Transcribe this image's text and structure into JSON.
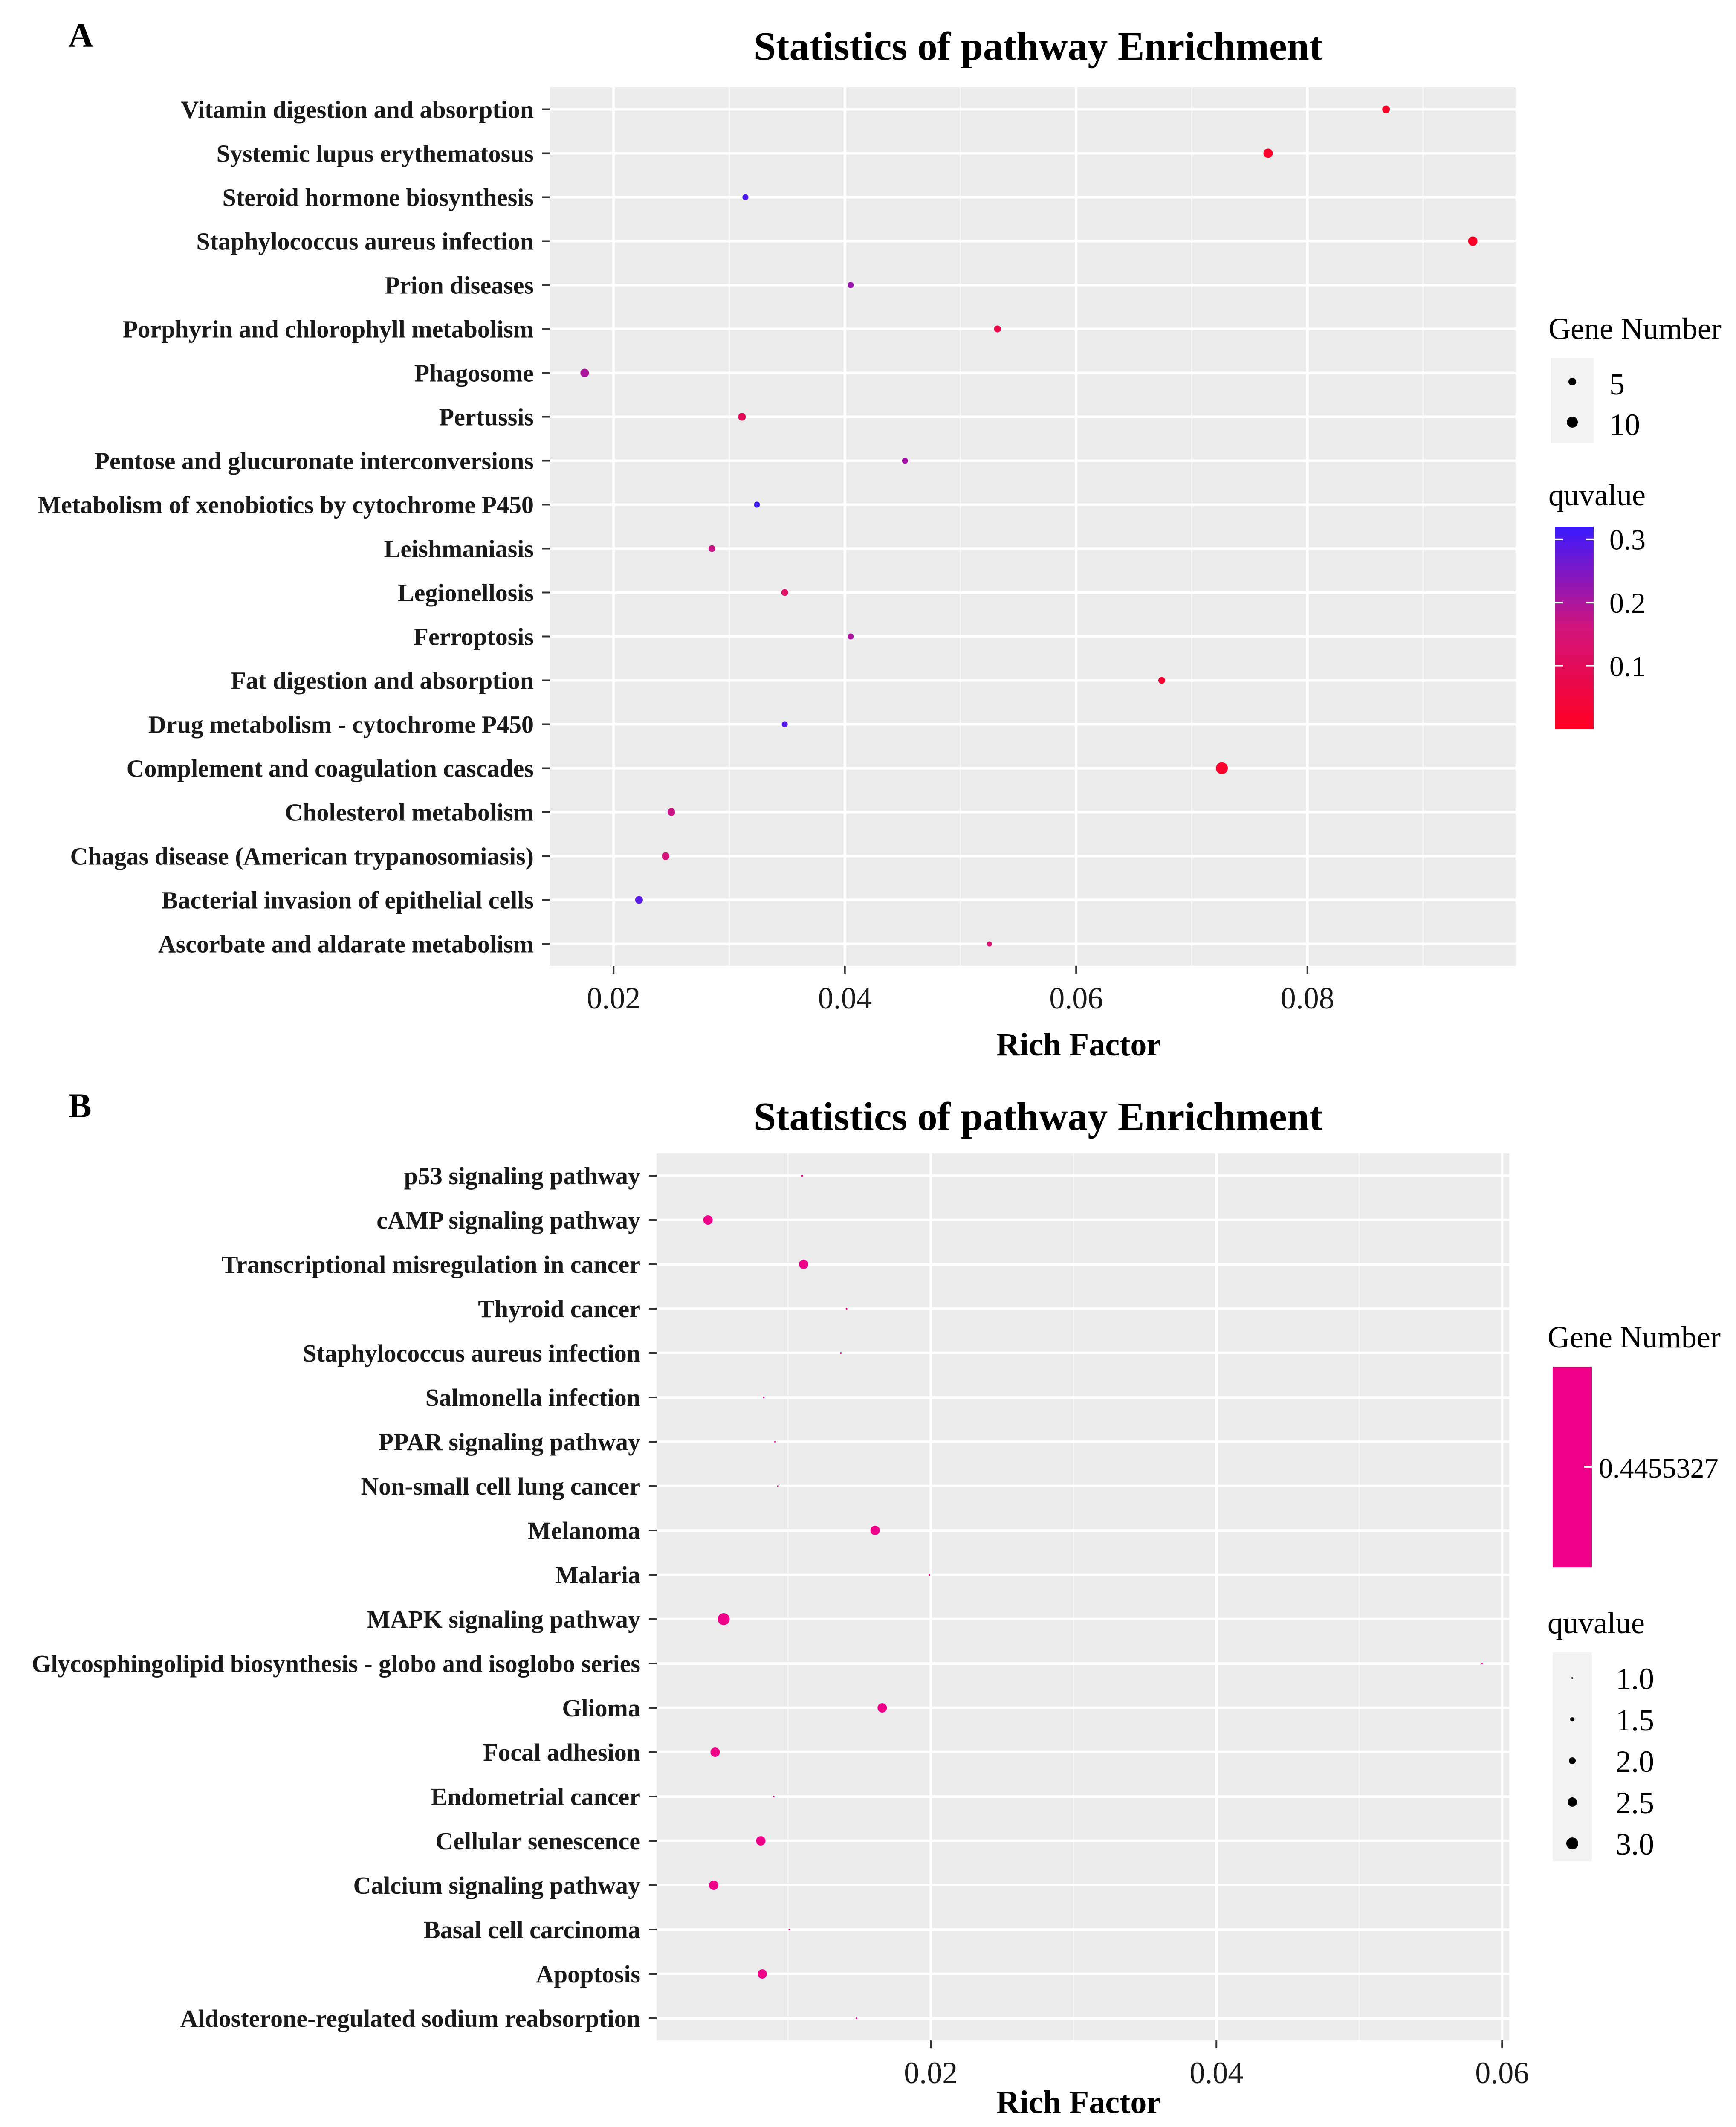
{
  "panels": [
    {
      "letter": "A"
    },
    {
      "letter": "B"
    }
  ],
  "chart_data": [
    {
      "type": "scatter",
      "panel": "A",
      "title": "Statistics of pathway Enrichment",
      "xlabel": "Rich Factor",
      "ylabel": "",
      "xlim": [
        0.0145,
        0.098
      ],
      "xticks": [
        0.02,
        0.04,
        0.06,
        0.08
      ],
      "xtick_labels": [
        "0.02",
        "0.04",
        "0.06",
        "0.08"
      ],
      "grid": true,
      "size_legend": {
        "title": "Gene Number",
        "values": [
          5,
          10
        ],
        "labels": [
          "5",
          "10"
        ]
      },
      "color_legend": {
        "title": "quvalue",
        "range": [
          0.0,
          0.32
        ],
        "ticks": [
          0.3,
          0.2,
          0.1
        ],
        "labels": [
          "0.3",
          "0.2",
          "0.1"
        ],
        "low_color": "#ff0022",
        "high_color": "#3a1aff"
      },
      "points": [
        {
          "label": "Vitamin digestion and absorption",
          "x": 0.0868,
          "q": 0.01,
          "size": 5
        },
        {
          "label": "Systemic lupus erythematosus",
          "x": 0.0766,
          "q": 0.02,
          "size": 7
        },
        {
          "label": "Steroid hormone biosynthesis",
          "x": 0.0314,
          "q": 0.3,
          "size": 3
        },
        {
          "label": "Staphylococcus aureus infection",
          "x": 0.0943,
          "q": 0.01,
          "size": 7
        },
        {
          "label": "Prion diseases",
          "x": 0.0405,
          "q": 0.22,
          "size": 3
        },
        {
          "label": "Porphyrin and chlorophyll metabolism",
          "x": 0.0532,
          "q": 0.07,
          "size": 4
        },
        {
          "label": "Phagosome",
          "x": 0.0175,
          "q": 0.2,
          "size": 6
        },
        {
          "label": "Pertussis",
          "x": 0.0311,
          "q": 0.1,
          "size": 5
        },
        {
          "label": "Pentose and glucuronate interconversions",
          "x": 0.0452,
          "q": 0.21,
          "size": 3
        },
        {
          "label": "Metabolism of xenobiotics by cytochrome P450",
          "x": 0.0324,
          "q": 0.31,
          "size": 3
        },
        {
          "label": "Leishmaniasis",
          "x": 0.0285,
          "q": 0.17,
          "size": 4
        },
        {
          "label": "Legionellosis",
          "x": 0.0348,
          "q": 0.12,
          "size": 4
        },
        {
          "label": "Ferroptosis",
          "x": 0.0405,
          "q": 0.2,
          "size": 3
        },
        {
          "label": "Fat digestion and absorption",
          "x": 0.0674,
          "q": 0.03,
          "size": 4
        },
        {
          "label": "Drug metabolism - cytochrome P450",
          "x": 0.0348,
          "q": 0.29,
          "size": 3
        },
        {
          "label": "Complement and coagulation cascades",
          "x": 0.0726,
          "q": 0.02,
          "size": 10
        },
        {
          "label": "Cholesterol metabolism",
          "x": 0.025,
          "q": 0.17,
          "size": 5
        },
        {
          "label": "Chagas disease (American trypanosomiasis)",
          "x": 0.0245,
          "q": 0.16,
          "size": 5
        },
        {
          "label": "Bacterial invasion of epithelial cells",
          "x": 0.0222,
          "q": 0.29,
          "size": 5
        },
        {
          "label": "Ascorbate and aldarate metabolism",
          "x": 0.0525,
          "q": 0.14,
          "size": 2
        }
      ]
    },
    {
      "type": "scatter",
      "panel": "B",
      "title": "Statistics of pathway Enrichment",
      "xlabel": "Rich Factor",
      "ylabel": "",
      "xlim": [
        0.0008,
        0.0605
      ],
      "xticks": [
        0.02,
        0.04,
        0.06
      ],
      "xtick_labels": [
        "0.02",
        "0.04",
        "0.06"
      ],
      "grid": true,
      "gene_number_legend": {
        "title": "Gene Number",
        "value": 0.4455327,
        "label": "0.4455327",
        "color": "#ee0088"
      },
      "size_legend": {
        "title": "quvalue",
        "values": [
          1.0,
          1.5,
          2.0,
          2.5,
          3.0
        ],
        "labels": [
          "1.0",
          "1.5",
          "2.0",
          "2.5",
          "3.0"
        ]
      },
      "points": [
        {
          "label": "p53 signaling pathway",
          "x": 0.011,
          "size": 1.0
        },
        {
          "label": "cAMP signaling pathway",
          "x": 0.0044,
          "size": 2.5
        },
        {
          "label": "Transcriptional misregulation in cancer",
          "x": 0.0111,
          "size": 2.5
        },
        {
          "label": "Thyroid cancer",
          "x": 0.0141,
          "size": 1.0
        },
        {
          "label": "Staphylococcus aureus infection",
          "x": 0.0137,
          "size": 1.0
        },
        {
          "label": "Salmonella infection",
          "x": 0.0083,
          "size": 1.0
        },
        {
          "label": "PPAR signaling pathway",
          "x": 0.0091,
          "size": 1.0
        },
        {
          "label": "Non-small cell lung cancer",
          "x": 0.0093,
          "size": 1.0
        },
        {
          "label": "Melanoma",
          "x": 0.0161,
          "size": 2.5
        },
        {
          "label": "Malaria",
          "x": 0.0199,
          "size": 1.0
        },
        {
          "label": "MAPK signaling pathway",
          "x": 0.0055,
          "size": 3.0
        },
        {
          "label": "Glycosphingolipid biosynthesis - globo and isoglobo series",
          "x": 0.0586,
          "size": 1.0
        },
        {
          "label": "Glioma",
          "x": 0.0166,
          "size": 2.5
        },
        {
          "label": "Focal adhesion",
          "x": 0.0049,
          "size": 2.5
        },
        {
          "label": "Endometrial cancer",
          "x": 0.009,
          "size": 1.0
        },
        {
          "label": "Cellular senescence",
          "x": 0.0081,
          "size": 2.5
        },
        {
          "label": "Calcium signaling pathway",
          "x": 0.0048,
          "size": 2.5
        },
        {
          "label": "Basal cell carcinoma",
          "x": 0.0101,
          "size": 1.0
        },
        {
          "label": "Apoptosis",
          "x": 0.0082,
          "size": 2.5
        },
        {
          "label": "Aldosterone-regulated sodium reabsorption",
          "x": 0.0148,
          "size": 1.0
        }
      ]
    }
  ]
}
